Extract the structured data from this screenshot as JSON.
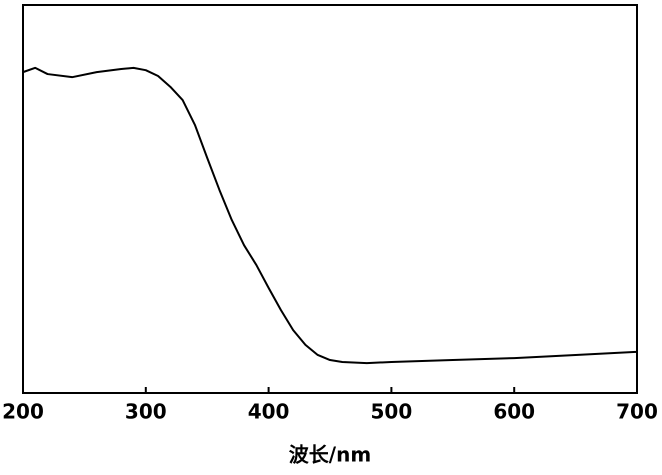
{
  "chart_data": {
    "type": "line",
    "xlabel": "波长/nm",
    "x": [
      200,
      210,
      220,
      240,
      260,
      280,
      290,
      300,
      310,
      320,
      330,
      340,
      350,
      360,
      370,
      380,
      390,
      400,
      410,
      420,
      430,
      440,
      450,
      460,
      480,
      500,
      550,
      600,
      650,
      700
    ],
    "series": [
      {
        "color": "#000000",
        "values": [
          0.827,
          0.838,
          0.822,
          0.814,
          0.827,
          0.835,
          0.838,
          0.832,
          0.817,
          0.789,
          0.755,
          0.691,
          0.606,
          0.523,
          0.446,
          0.381,
          0.33,
          0.271,
          0.214,
          0.162,
          0.124,
          0.098,
          0.085,
          0.08,
          0.077,
          0.08,
          0.085,
          0.09,
          0.098,
          0.106
        ]
      }
    ],
    "xlim": [
      200,
      700
    ],
    "xticks": [
      200,
      300,
      400,
      500,
      600,
      700
    ],
    "ylim": [
      0,
      1
    ]
  }
}
